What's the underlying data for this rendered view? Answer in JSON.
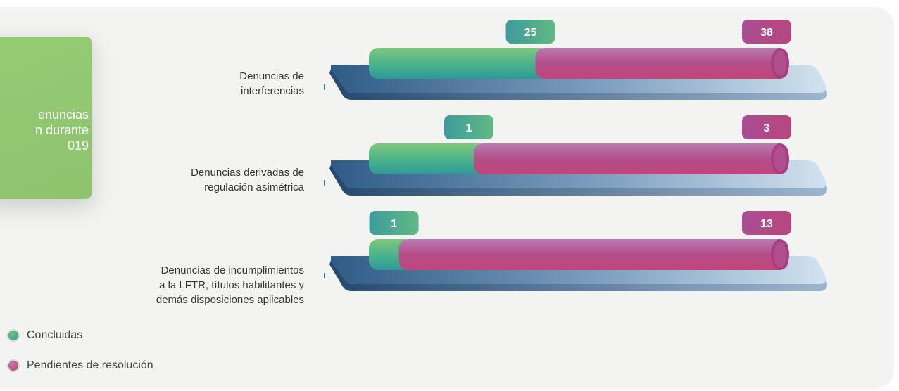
{
  "info_card": {
    "text": "enuncias\nn durante\n019"
  },
  "colors": {
    "concluded": "#3aa79b",
    "concluded_light": "#6cc27d",
    "pending": "#b64d8a",
    "pending_dark": "#a73e80",
    "platform_dark": "#2f5c86",
    "platform_light": "#d2e2ef"
  },
  "legend": [
    {
      "label": "Concluidas",
      "color": "#4aa888"
    },
    {
      "label": "Pendientes de resolución",
      "color": "#b44b83"
    }
  ],
  "chart_data": {
    "type": "bar",
    "stacked": true,
    "orientation": "horizontal",
    "categories": [
      "Denuncias de interferencias",
      "Denuncias derivadas de regulación asimétrica",
      "Denuncias de incumplimientos a la LFTR, títulos habilitantes y demás disposiciones aplicables"
    ],
    "category_lines": [
      [
        "Denuncias de",
        "interferencias"
      ],
      [
        "Denuncias derivadas de",
        "regulación asimétrica"
      ],
      [
        "Denuncias de incumplimientos",
        "a la LFTR, títulos habilitantes y",
        "demás disposiciones aplicables"
      ]
    ],
    "series": [
      {
        "name": "Concluidas",
        "values": [
          25,
          1,
          1
        ]
      },
      {
        "name": "Pendientes de resolución",
        "values": [
          38,
          3,
          13
        ]
      }
    ],
    "legend_position": "bottom-left"
  }
}
